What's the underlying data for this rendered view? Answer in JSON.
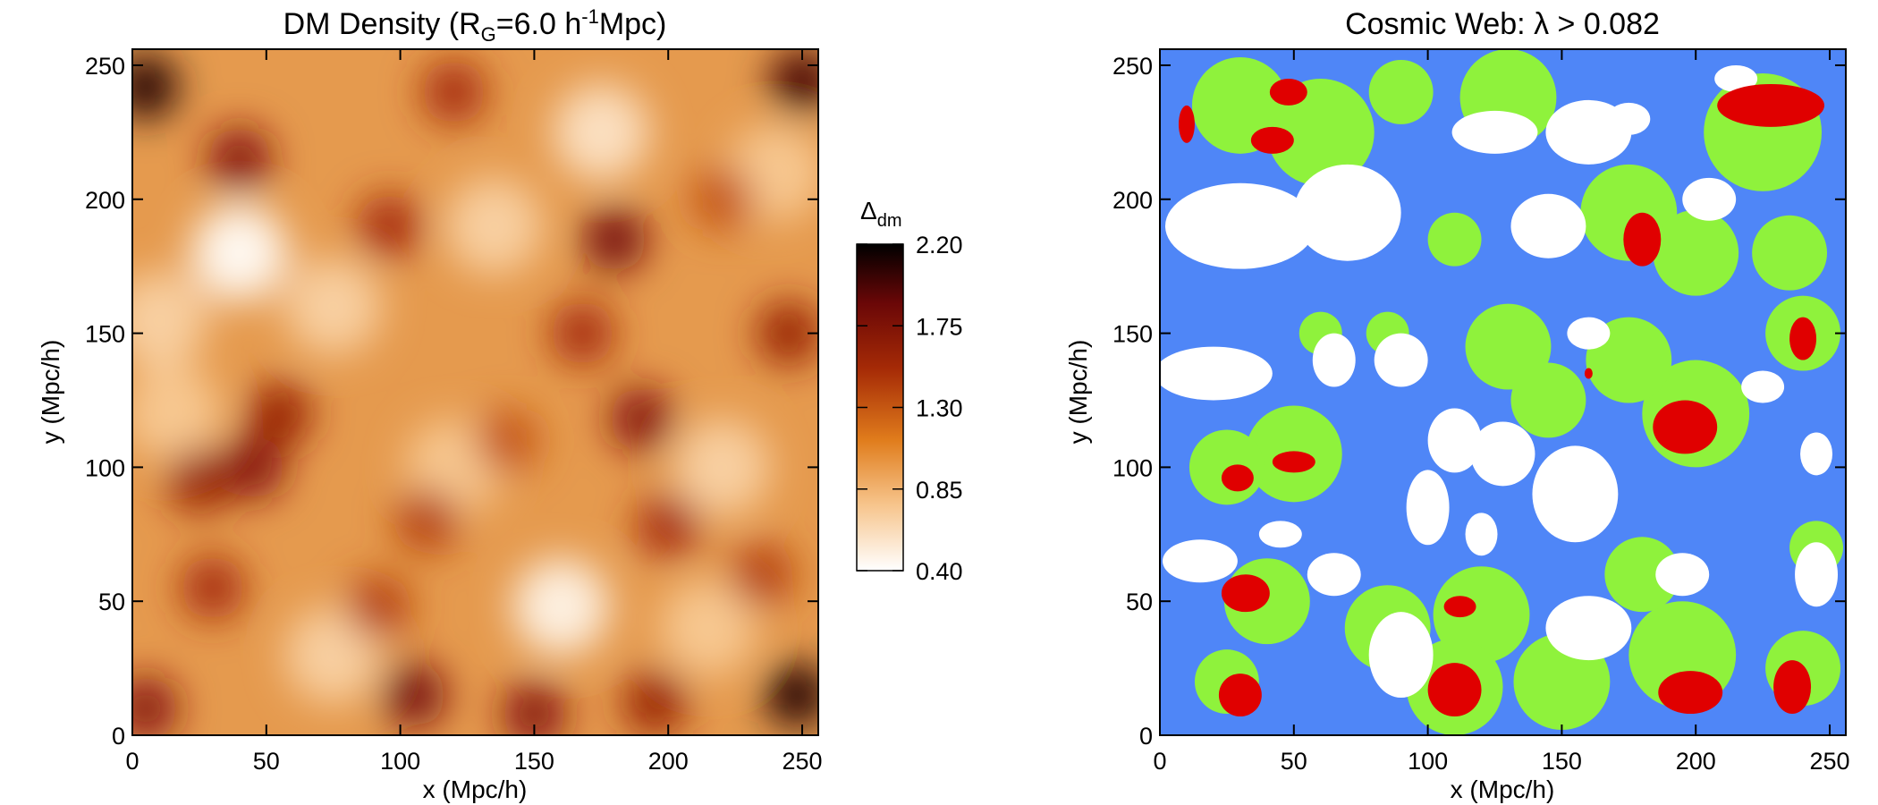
{
  "chart_data": [
    {
      "type": "heatmap",
      "title_main": "DM Density (R",
      "title_sub": "G",
      "title_mid": "=6.0 h",
      "title_sup": "-1",
      "title_end": "Mpc)",
      "xlabel": "x (Mpc/h)",
      "ylabel": "y (Mpc/h)",
      "xlim": [
        0,
        256
      ],
      "ylim": [
        0,
        256
      ],
      "xticks": [
        0,
        50,
        100,
        150,
        200,
        250
      ],
      "yticks": [
        0,
        50,
        100,
        150,
        200,
        250
      ],
      "colorbar": {
        "label_main": "Δ",
        "label_sub": "dm",
        "range": [
          0.4,
          2.2
        ],
        "ticks": [
          "2.20",
          "1.75",
          "1.30",
          "0.85",
          "0.40"
        ]
      },
      "dense_regions": [
        {
          "x": 5,
          "y": 242,
          "v": 2.1
        },
        {
          "x": 250,
          "y": 244,
          "v": 2.0
        },
        {
          "x": 40,
          "y": 215,
          "v": 1.7
        },
        {
          "x": 180,
          "y": 185,
          "v": 1.8
        },
        {
          "x": 96,
          "y": 190,
          "v": 1.5
        },
        {
          "x": 168,
          "y": 150,
          "v": 1.5
        },
        {
          "x": 245,
          "y": 150,
          "v": 1.6
        },
        {
          "x": 190,
          "y": 118,
          "v": 1.7
        },
        {
          "x": 55,
          "y": 120,
          "v": 1.6
        },
        {
          "x": 25,
          "y": 95,
          "v": 1.6
        },
        {
          "x": 45,
          "y": 100,
          "v": 1.7
        },
        {
          "x": 110,
          "y": 80,
          "v": 1.4
        },
        {
          "x": 200,
          "y": 78,
          "v": 1.5
        },
        {
          "x": 30,
          "y": 55,
          "v": 1.5
        },
        {
          "x": 92,
          "y": 48,
          "v": 1.4
        },
        {
          "x": 105,
          "y": 15,
          "v": 1.8
        },
        {
          "x": 150,
          "y": 8,
          "v": 1.7
        },
        {
          "x": 248,
          "y": 15,
          "v": 2.1
        },
        {
          "x": 195,
          "y": 12,
          "v": 1.6
        },
        {
          "x": 5,
          "y": 10,
          "v": 1.7
        },
        {
          "x": 235,
          "y": 60,
          "v": 1.4
        },
        {
          "x": 120,
          "y": 240,
          "v": 1.5
        },
        {
          "x": 220,
          "y": 200,
          "v": 1.3
        },
        {
          "x": 140,
          "y": 110,
          "v": 1.3
        }
      ],
      "void_regions": [
        {
          "x": 40,
          "y": 180,
          "v": 0.45
        },
        {
          "x": 160,
          "y": 48,
          "v": 0.5
        },
        {
          "x": 175,
          "y": 225,
          "v": 0.6
        },
        {
          "x": 10,
          "y": 155,
          "v": 0.7
        },
        {
          "x": 220,
          "y": 100,
          "v": 0.7
        },
        {
          "x": 240,
          "y": 210,
          "v": 0.75
        },
        {
          "x": 75,
          "y": 160,
          "v": 0.7
        },
        {
          "x": 215,
          "y": 40,
          "v": 0.75
        },
        {
          "x": 135,
          "y": 190,
          "v": 0.7
        },
        {
          "x": 15,
          "y": 120,
          "v": 0.75
        },
        {
          "x": 120,
          "y": 100,
          "v": 0.75
        },
        {
          "x": 75,
          "y": 30,
          "v": 0.7
        }
      ]
    },
    {
      "type": "heatmap",
      "title": "Cosmic Web: λ > 0.082",
      "xlabel": "x (Mpc/h)",
      "ylabel": "y (Mpc/h)",
      "xlim": [
        0,
        256
      ],
      "ylim": [
        0,
        256
      ],
      "xticks": [
        0,
        50,
        100,
        150,
        200,
        250
      ],
      "yticks": [
        0,
        50,
        100,
        150,
        200,
        250
      ],
      "categories": [
        "void",
        "sheet",
        "filament",
        "knot"
      ],
      "colors": {
        "void": "#ffffff",
        "sheet": "#4f86f7",
        "filament": "#8ff23c",
        "knot": "#e00000"
      },
      "filaments": [
        {
          "x": 30,
          "y": 235,
          "r": 18
        },
        {
          "x": 60,
          "y": 225,
          "r": 20
        },
        {
          "x": 130,
          "y": 238,
          "r": 18
        },
        {
          "x": 225,
          "y": 225,
          "r": 22
        },
        {
          "x": 175,
          "y": 195,
          "r": 18
        },
        {
          "x": 200,
          "y": 180,
          "r": 16
        },
        {
          "x": 110,
          "y": 185,
          "r": 10
        },
        {
          "x": 240,
          "y": 150,
          "r": 14
        },
        {
          "x": 200,
          "y": 120,
          "r": 20
        },
        {
          "x": 175,
          "y": 140,
          "r": 16
        },
        {
          "x": 130,
          "y": 145,
          "r": 16
        },
        {
          "x": 145,
          "y": 125,
          "r": 14
        },
        {
          "x": 50,
          "y": 105,
          "r": 18
        },
        {
          "x": 25,
          "y": 100,
          "r": 14
        },
        {
          "x": 40,
          "y": 50,
          "r": 16
        },
        {
          "x": 25,
          "y": 20,
          "r": 12
        },
        {
          "x": 85,
          "y": 40,
          "r": 16
        },
        {
          "x": 120,
          "y": 45,
          "r": 18
        },
        {
          "x": 110,
          "y": 18,
          "r": 18
        },
        {
          "x": 150,
          "y": 20,
          "r": 18
        },
        {
          "x": 195,
          "y": 30,
          "r": 20
        },
        {
          "x": 240,
          "y": 25,
          "r": 14
        },
        {
          "x": 180,
          "y": 60,
          "r": 14
        },
        {
          "x": 235,
          "y": 180,
          "r": 14
        },
        {
          "x": 90,
          "y": 240,
          "r": 12
        },
        {
          "x": 60,
          "y": 150,
          "r": 8
        },
        {
          "x": 85,
          "y": 150,
          "r": 8
        },
        {
          "x": 245,
          "y": 70,
          "r": 10
        }
      ],
      "knots": [
        {
          "x": 48,
          "y": 240,
          "rx": 7,
          "ry": 5
        },
        {
          "x": 42,
          "y": 222,
          "rx": 8,
          "ry": 5
        },
        {
          "x": 10,
          "y": 228,
          "rx": 3,
          "ry": 7
        },
        {
          "x": 228,
          "y": 235,
          "rx": 20,
          "ry": 8
        },
        {
          "x": 180,
          "y": 185,
          "rx": 7,
          "ry": 10
        },
        {
          "x": 240,
          "y": 148,
          "rx": 5,
          "ry": 8
        },
        {
          "x": 196,
          "y": 115,
          "rx": 12,
          "ry": 10
        },
        {
          "x": 29,
          "y": 96,
          "rx": 6,
          "ry": 5
        },
        {
          "x": 50,
          "y": 102,
          "rx": 8,
          "ry": 4
        },
        {
          "x": 160,
          "y": 135,
          "rx": 1.5,
          "ry": 2
        },
        {
          "x": 32,
          "y": 53,
          "rx": 9,
          "ry": 7
        },
        {
          "x": 112,
          "y": 48,
          "rx": 6,
          "ry": 4
        },
        {
          "x": 30,
          "y": 15,
          "rx": 8,
          "ry": 8
        },
        {
          "x": 110,
          "y": 17,
          "rx": 10,
          "ry": 10
        },
        {
          "x": 198,
          "y": 16,
          "rx": 12,
          "ry": 8
        },
        {
          "x": 236,
          "y": 18,
          "rx": 7,
          "ry": 10
        }
      ],
      "voids": [
        {
          "x": 30,
          "y": 190,
          "rx": 28,
          "ry": 16
        },
        {
          "x": 70,
          "y": 195,
          "rx": 20,
          "ry": 18
        },
        {
          "x": 160,
          "y": 225,
          "rx": 16,
          "ry": 12
        },
        {
          "x": 125,
          "y": 225,
          "rx": 16,
          "ry": 8
        },
        {
          "x": 145,
          "y": 190,
          "rx": 14,
          "ry": 12
        },
        {
          "x": 175,
          "y": 230,
          "rx": 8,
          "ry": 6
        },
        {
          "x": 215,
          "y": 245,
          "rx": 8,
          "ry": 5
        },
        {
          "x": 20,
          "y": 135,
          "rx": 22,
          "ry": 10
        },
        {
          "x": 65,
          "y": 140,
          "rx": 8,
          "ry": 10
        },
        {
          "x": 90,
          "y": 140,
          "rx": 10,
          "ry": 10
        },
        {
          "x": 110,
          "y": 110,
          "rx": 10,
          "ry": 12
        },
        {
          "x": 100,
          "y": 85,
          "rx": 8,
          "ry": 14
        },
        {
          "x": 155,
          "y": 90,
          "rx": 16,
          "ry": 18
        },
        {
          "x": 128,
          "y": 105,
          "rx": 12,
          "ry": 12
        },
        {
          "x": 205,
          "y": 200,
          "rx": 10,
          "ry": 8
        },
        {
          "x": 225,
          "y": 130,
          "rx": 8,
          "ry": 6
        },
        {
          "x": 245,
          "y": 105,
          "rx": 6,
          "ry": 8
        },
        {
          "x": 245,
          "y": 60,
          "rx": 8,
          "ry": 12
        },
        {
          "x": 90,
          "y": 30,
          "rx": 12,
          "ry": 16
        },
        {
          "x": 160,
          "y": 40,
          "rx": 16,
          "ry": 12
        },
        {
          "x": 65,
          "y": 60,
          "rx": 10,
          "ry": 8
        },
        {
          "x": 15,
          "y": 65,
          "rx": 14,
          "ry": 8
        },
        {
          "x": 45,
          "y": 75,
          "rx": 8,
          "ry": 5
        },
        {
          "x": 195,
          "y": 60,
          "rx": 10,
          "ry": 8
        },
        {
          "x": 160,
          "y": 150,
          "rx": 8,
          "ry": 6
        },
        {
          "x": 120,
          "y": 75,
          "rx": 6,
          "ry": 8
        }
      ]
    }
  ]
}
